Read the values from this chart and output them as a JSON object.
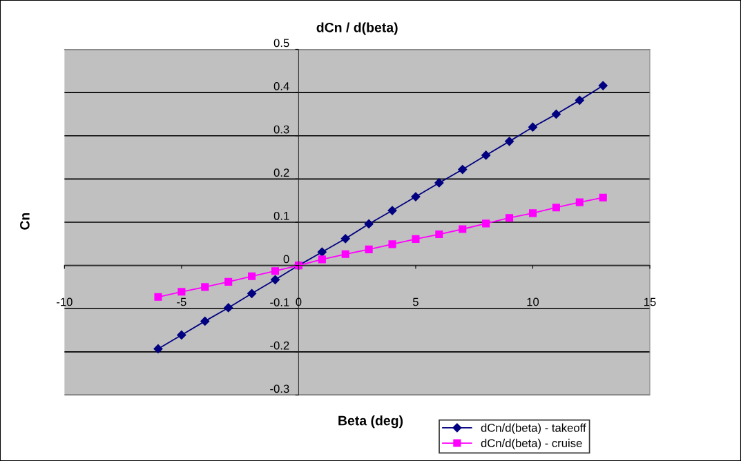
{
  "chart_data": {
    "type": "line",
    "title": "dCn / d(beta)",
    "xlabel": "Beta (deg)",
    "ylabel": "Cn",
    "x": [
      -6,
      -5,
      -4,
      -3,
      -2,
      -1,
      0,
      1,
      2,
      3,
      4,
      5,
      6,
      7,
      8,
      9,
      10,
      11,
      12,
      13
    ],
    "series": [
      {
        "name": "dCn/d(beta) - takeoff",
        "color": "#000080",
        "marker": "diamond",
        "values": [
          -0.193,
          -0.161,
          -0.129,
          -0.098,
          -0.065,
          -0.033,
          0,
          0.031,
          0.062,
          0.096,
          0.127,
          0.159,
          0.191,
          0.222,
          0.255,
          0.287,
          0.32,
          0.35,
          0.382,
          0.416
        ]
      },
      {
        "name": "dCn/d(beta) - cruise",
        "color": "#ff00ff",
        "marker": "square",
        "values": [
          -0.073,
          -0.061,
          -0.05,
          -0.038,
          -0.025,
          -0.013,
          0,
          0.014,
          0.026,
          0.037,
          0.049,
          0.061,
          0.072,
          0.084,
          0.097,
          0.11,
          0.121,
          0.134,
          0.146,
          0.157
        ]
      }
    ],
    "xlim": [
      -10,
      15
    ],
    "xticks": [
      -10,
      -5,
      0,
      5,
      10,
      15
    ],
    "ylim": [
      -0.3,
      0.5
    ],
    "yticks": [
      -0.3,
      -0.2,
      -0.1,
      0,
      0.1,
      0.2,
      0.3,
      0.4,
      0.5
    ],
    "grid": "y",
    "legend": "bottom right",
    "line_style": "solid"
  }
}
